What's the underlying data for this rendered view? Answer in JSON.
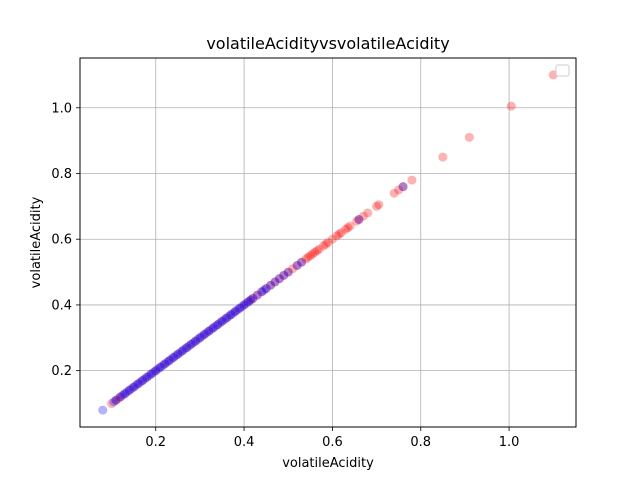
{
  "chart_data": {
    "type": "scatter",
    "title": "volatileAcidityvsvolatileAcidity",
    "xlabel": "volatileAcidity",
    "ylabel": "volatileAcidity",
    "xlim": [
      0.0285,
      1.1515
    ],
    "ylim": [
      0.0285,
      1.1515
    ],
    "xticks": [
      0.2,
      0.4,
      0.6,
      0.8,
      1.0
    ],
    "yticks": [
      0.2,
      0.4,
      0.6,
      0.8,
      1.0
    ],
    "xtick_labels": [
      "0.2",
      "0.4",
      "0.6",
      "0.8",
      "1.0"
    ],
    "ytick_labels": [
      "0.2",
      "0.4",
      "0.6",
      "0.8",
      "1.0"
    ],
    "grid": true,
    "legend": "upper-right",
    "series": [
      {
        "color": "#ff0000",
        "opacity": 0.3,
        "points": [
          [
            0.1,
            0.1
          ],
          [
            0.11,
            0.11
          ],
          [
            0.115,
            0.115
          ],
          [
            0.12,
            0.12
          ],
          [
            0.13,
            0.13
          ],
          [
            0.14,
            0.14
          ],
          [
            0.15,
            0.15
          ],
          [
            0.16,
            0.16
          ],
          [
            0.17,
            0.17
          ],
          [
            0.18,
            0.18
          ],
          [
            0.19,
            0.19
          ],
          [
            0.2,
            0.2
          ],
          [
            0.21,
            0.21
          ],
          [
            0.22,
            0.22
          ],
          [
            0.23,
            0.23
          ],
          [
            0.24,
            0.24
          ],
          [
            0.25,
            0.25
          ],
          [
            0.26,
            0.26
          ],
          [
            0.27,
            0.27
          ],
          [
            0.28,
            0.28
          ],
          [
            0.29,
            0.29
          ],
          [
            0.3,
            0.3
          ],
          [
            0.31,
            0.31
          ],
          [
            0.32,
            0.32
          ],
          [
            0.33,
            0.33
          ],
          [
            0.34,
            0.34
          ],
          [
            0.35,
            0.35
          ],
          [
            0.36,
            0.36
          ],
          [
            0.37,
            0.37
          ],
          [
            0.38,
            0.38
          ],
          [
            0.39,
            0.39
          ],
          [
            0.4,
            0.4
          ],
          [
            0.41,
            0.41
          ],
          [
            0.415,
            0.415
          ],
          [
            0.42,
            0.42
          ],
          [
            0.43,
            0.43
          ],
          [
            0.44,
            0.44
          ],
          [
            0.45,
            0.45
          ],
          [
            0.46,
            0.46
          ],
          [
            0.47,
            0.47
          ],
          [
            0.48,
            0.48
          ],
          [
            0.49,
            0.49
          ],
          [
            0.5,
            0.5
          ],
          [
            0.51,
            0.51
          ],
          [
            0.52,
            0.52
          ],
          [
            0.53,
            0.53
          ],
          [
            0.54,
            0.54
          ],
          [
            0.545,
            0.545
          ],
          [
            0.55,
            0.55
          ],
          [
            0.555,
            0.555
          ],
          [
            0.56,
            0.56
          ],
          [
            0.565,
            0.565
          ],
          [
            0.57,
            0.57
          ],
          [
            0.58,
            0.58
          ],
          [
            0.585,
            0.585
          ],
          [
            0.59,
            0.59
          ],
          [
            0.6,
            0.6
          ],
          [
            0.61,
            0.61
          ],
          [
            0.615,
            0.615
          ],
          [
            0.62,
            0.62
          ],
          [
            0.63,
            0.63
          ],
          [
            0.635,
            0.635
          ],
          [
            0.64,
            0.64
          ],
          [
            0.655,
            0.655
          ],
          [
            0.66,
            0.66
          ],
          [
            0.67,
            0.67
          ],
          [
            0.68,
            0.68
          ],
          [
            0.7,
            0.7
          ],
          [
            0.705,
            0.705
          ],
          [
            0.74,
            0.74
          ],
          [
            0.75,
            0.75
          ],
          [
            0.76,
            0.76
          ],
          [
            0.78,
            0.78
          ],
          [
            0.85,
            0.85
          ],
          [
            0.91,
            0.91
          ],
          [
            1.005,
            1.005
          ],
          [
            1.1,
            1.1
          ]
        ]
      },
      {
        "color": "#0000ff",
        "opacity": 0.3,
        "points": [
          [
            0.08,
            0.08
          ],
          [
            0.105,
            0.105
          ],
          [
            0.11,
            0.11
          ],
          [
            0.12,
            0.12
          ],
          [
            0.125,
            0.125
          ],
          [
            0.13,
            0.13
          ],
          [
            0.135,
            0.135
          ],
          [
            0.14,
            0.14
          ],
          [
            0.145,
            0.145
          ],
          [
            0.15,
            0.15
          ],
          [
            0.155,
            0.155
          ],
          [
            0.16,
            0.16
          ],
          [
            0.165,
            0.165
          ],
          [
            0.17,
            0.17
          ],
          [
            0.175,
            0.175
          ],
          [
            0.18,
            0.18
          ],
          [
            0.185,
            0.185
          ],
          [
            0.19,
            0.19
          ],
          [
            0.195,
            0.195
          ],
          [
            0.2,
            0.2
          ],
          [
            0.205,
            0.205
          ],
          [
            0.21,
            0.21
          ],
          [
            0.215,
            0.215
          ],
          [
            0.22,
            0.22
          ],
          [
            0.225,
            0.225
          ],
          [
            0.23,
            0.23
          ],
          [
            0.235,
            0.235
          ],
          [
            0.24,
            0.24
          ],
          [
            0.245,
            0.245
          ],
          [
            0.25,
            0.25
          ],
          [
            0.255,
            0.255
          ],
          [
            0.26,
            0.26
          ],
          [
            0.265,
            0.265
          ],
          [
            0.27,
            0.27
          ],
          [
            0.275,
            0.275
          ],
          [
            0.28,
            0.28
          ],
          [
            0.285,
            0.285
          ],
          [
            0.29,
            0.29
          ],
          [
            0.295,
            0.295
          ],
          [
            0.3,
            0.3
          ],
          [
            0.305,
            0.305
          ],
          [
            0.31,
            0.31
          ],
          [
            0.315,
            0.315
          ],
          [
            0.32,
            0.32
          ],
          [
            0.325,
            0.325
          ],
          [
            0.33,
            0.33
          ],
          [
            0.335,
            0.335
          ],
          [
            0.34,
            0.34
          ],
          [
            0.345,
            0.345
          ],
          [
            0.35,
            0.35
          ],
          [
            0.355,
            0.355
          ],
          [
            0.36,
            0.36
          ],
          [
            0.365,
            0.365
          ],
          [
            0.37,
            0.37
          ],
          [
            0.375,
            0.375
          ],
          [
            0.38,
            0.38
          ],
          [
            0.385,
            0.385
          ],
          [
            0.39,
            0.39
          ],
          [
            0.395,
            0.395
          ],
          [
            0.4,
            0.4
          ],
          [
            0.405,
            0.405
          ],
          [
            0.41,
            0.41
          ],
          [
            0.415,
            0.415
          ],
          [
            0.42,
            0.42
          ],
          [
            0.43,
            0.43
          ],
          [
            0.44,
            0.44
          ],
          [
            0.445,
            0.445
          ],
          [
            0.45,
            0.45
          ],
          [
            0.46,
            0.46
          ],
          [
            0.47,
            0.47
          ],
          [
            0.48,
            0.48
          ],
          [
            0.49,
            0.49
          ],
          [
            0.5,
            0.5
          ],
          [
            0.52,
            0.52
          ],
          [
            0.53,
            0.53
          ],
          [
            0.66,
            0.66
          ],
          [
            0.76,
            0.76
          ]
        ]
      }
    ]
  }
}
